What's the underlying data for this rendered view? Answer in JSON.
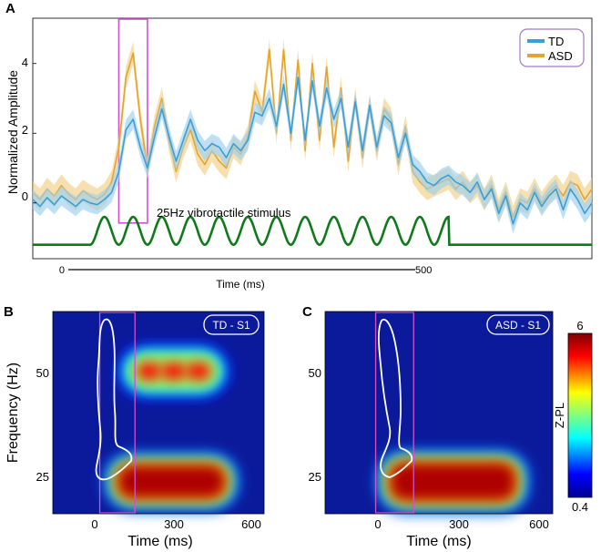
{
  "colors": {
    "td": "#3a9fd6",
    "td_band": "#9cd0ee",
    "asd": "#e6a42b",
    "asd_band": "#f3cf86",
    "stimulus": "#0f7a1a",
    "highlight": "#d34fd6",
    "heat_bg": "#0b1a9a",
    "contour": "#ffffff"
  },
  "chart_data": [
    {
      "type": "line",
      "panel": "A",
      "ylabel": "Normalized Amplitude",
      "xlabel": "Time (ms)",
      "yticks": [
        "0",
        "2",
        "4"
      ],
      "ylim": [
        -1.6,
        5.3
      ],
      "xlim": [
        -80,
        700
      ],
      "time_bar": {
        "start_label": "0",
        "end_label": "500",
        "start": 0,
        "end": 500
      },
      "legend": [
        "TD",
        "ASD"
      ],
      "legend_position": "top-right",
      "stimulus_label": "25Hz vibrotactile stimulus",
      "stimulus": {
        "frequency_hz": 25,
        "start_ms": 0,
        "end_ms": 500,
        "baseline": -1.2,
        "amplitude": 0.4
      },
      "highlight_window_ms": [
        40,
        80
      ],
      "series": [
        {
          "name": "TD",
          "x": [
            -80,
            -70,
            -60,
            -50,
            -40,
            -30,
            -20,
            -10,
            0,
            10,
            20,
            30,
            40,
            50,
            60,
            70,
            80,
            90,
            100,
            110,
            120,
            130,
            140,
            150,
            160,
            170,
            180,
            190,
            200,
            210,
            220,
            230,
            240,
            250,
            260,
            270,
            280,
            290,
            300,
            310,
            320,
            330,
            340,
            350,
            360,
            370,
            380,
            390,
            400,
            410,
            420,
            430,
            440,
            450,
            460,
            470,
            480,
            490,
            500,
            510,
            520,
            530,
            540,
            550,
            560,
            570,
            580,
            590,
            600,
            610,
            620,
            630,
            640,
            650,
            660,
            670,
            680,
            690,
            700
          ],
          "values": [
            0.1,
            -0.1,
            0.15,
            -0.05,
            0.2,
            0.05,
            -0.1,
            0.1,
            0.0,
            -0.05,
            0.1,
            0.3,
            0.9,
            2.1,
            2.4,
            1.6,
            1.0,
            1.9,
            2.7,
            1.9,
            1.2,
            1.8,
            2.4,
            1.8,
            1.5,
            1.7,
            1.6,
            1.3,
            1.7,
            1.5,
            1.8,
            2.6,
            2.5,
            3.0,
            2.2,
            3.4,
            2.0,
            3.6,
            1.8,
            3.5,
            2.2,
            3.3,
            2.4,
            3.0,
            1.6,
            2.9,
            1.5,
            2.8,
            1.6,
            2.5,
            2.3,
            1.3,
            2.0,
            1.1,
            0.9,
            0.6,
            0.5,
            0.7,
            0.8,
            0.6,
            0.5,
            0.3,
            0.6,
            0.1,
            0.4,
            -0.3,
            0.2,
            -0.6,
            0.0,
            -0.2,
            0.3,
            -0.1,
            0.2,
            0.4,
            -0.2,
            0.4,
            0.1,
            -0.3,
            0.0
          ],
          "band": 0.28
        },
        {
          "name": "ASD",
          "x": [
            -80,
            -70,
            -60,
            -50,
            -40,
            -30,
            -20,
            -10,
            0,
            10,
            20,
            30,
            40,
            50,
            60,
            70,
            80,
            90,
            100,
            110,
            120,
            130,
            140,
            150,
            160,
            170,
            180,
            190,
            200,
            210,
            220,
            230,
            240,
            250,
            260,
            270,
            280,
            290,
            300,
            310,
            320,
            330,
            340,
            350,
            360,
            370,
            380,
            390,
            400,
            410,
            420,
            430,
            440,
            450,
            460,
            470,
            480,
            490,
            500,
            510,
            520,
            530,
            540,
            550,
            560,
            570,
            580,
            590,
            600,
            610,
            620,
            630,
            640,
            650,
            660,
            670,
            680,
            690,
            700
          ],
          "values": [
            0.3,
            0.1,
            0.4,
            0.2,
            0.5,
            0.25,
            0.1,
            0.35,
            0.2,
            0.1,
            0.25,
            0.6,
            1.6,
            3.6,
            4.3,
            2.4,
            1.0,
            2.2,
            3.0,
            1.8,
            0.9,
            1.6,
            2.1,
            1.4,
            1.1,
            1.5,
            1.2,
            1.0,
            1.6,
            1.4,
            1.9,
            3.2,
            2.6,
            4.4,
            2.0,
            4.4,
            1.8,
            4.1,
            1.5,
            4.0,
            1.8,
            3.9,
            1.6,
            3.3,
            1.2,
            3.0,
            1.3,
            2.8,
            1.5,
            2.7,
            2.4,
            1.1,
            2.2,
            0.9,
            0.6,
            0.4,
            0.5,
            0.6,
            0.7,
            0.4,
            0.6,
            0.3,
            0.5,
            0.1,
            0.5,
            -0.2,
            0.3,
            -0.4,
            0.1,
            0.0,
            0.4,
            0.0,
            0.3,
            0.5,
            0.2,
            0.6,
            0.5,
            0.1,
            0.4
          ],
          "band": 0.32
        }
      ]
    },
    {
      "type": "heatmap",
      "panel": "B",
      "title_box": "TD - S1",
      "ylabel": "Frequency (Hz)",
      "xlabel": "Time (ms)",
      "xticks": [
        "0",
        "300",
        "600"
      ],
      "yticks": [
        "50",
        "25"
      ],
      "xlim": [
        -200,
        700
      ],
      "ylim": [
        18,
        62
      ],
      "highlight_window_ms": [
        0,
        150
      ],
      "blobs": [
        {
          "t0": 90,
          "t1": 520,
          "f0": 22,
          "f1": 28,
          "intensity": 1.0
        },
        {
          "t0": 150,
          "t1": 480,
          "f0": 46.5,
          "f1": 51.5,
          "intensity": 0.75
        }
      ]
    },
    {
      "type": "heatmap",
      "panel": "C",
      "title_box": "ASD - S1",
      "xlabel": "Time (ms)",
      "xticks": [
        "0",
        "300",
        "600"
      ],
      "yticks": [
        "50",
        "25"
      ],
      "xlim": [
        -200,
        700
      ],
      "ylim": [
        18,
        62
      ],
      "highlight_window_ms": [
        0,
        150
      ],
      "blobs": [
        {
          "t0": 70,
          "t1": 540,
          "f0": 21.5,
          "f1": 28.5,
          "intensity": 1.0
        }
      ],
      "colorbar": {
        "label": "Z-PL",
        "max_label": "6",
        "min_label": "0.4",
        "min": 0.4,
        "max": 6
      }
    }
  ],
  "panels": {
    "a": "A",
    "b": "B",
    "c": "C"
  }
}
